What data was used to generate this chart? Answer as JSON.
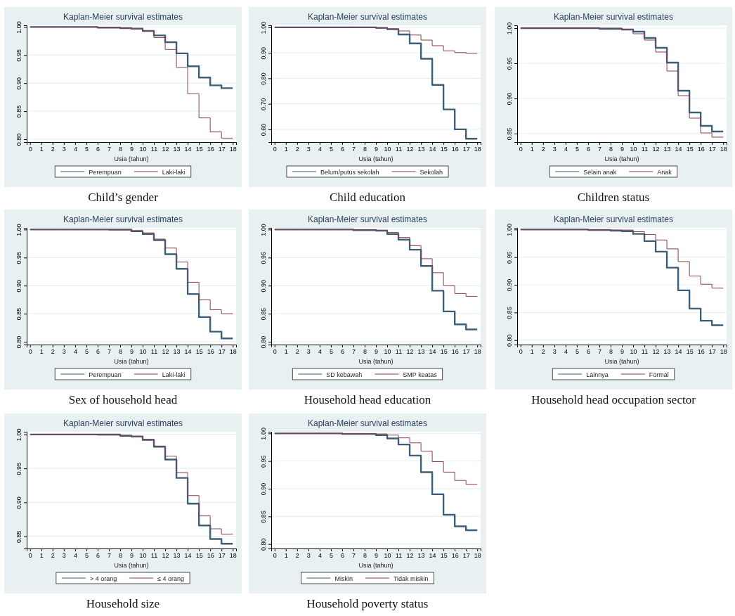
{
  "chart_data": [
    {
      "type": "step",
      "title": "Kaplan-Meier survival estimates",
      "xlabel": "Usia (tahun)",
      "annotations": [
        "Child’s gender"
      ],
      "x": [
        0,
        1,
        2,
        3,
        4,
        5,
        6,
        7,
        8,
        9,
        10,
        11,
        12,
        13,
        14,
        15,
        16,
        17,
        18
      ],
      "xlim": [
        -0.3,
        18.3
      ],
      "xticks": [
        0,
        1,
        2,
        3,
        4,
        5,
        6,
        7,
        8,
        9,
        10,
        11,
        12,
        13,
        14,
        15,
        16,
        17,
        18
      ],
      "ylim": [
        0.795,
        1.003
      ],
      "yticks": [
        {
          "value": 0.8,
          "label": "0.80"
        },
        {
          "value": 0.85,
          "label": "0.85"
        },
        {
          "value": 0.9,
          "label": "0.90"
        },
        {
          "value": 0.95,
          "label": "0.95"
        },
        {
          "value": 1,
          "label": "1.00"
        }
      ],
      "grid": "y",
      "legend": "bottom",
      "series": [
        {
          "name": "Perempuan",
          "color": "#3e5e78",
          "values": [
            1,
            1,
            1,
            1,
            1,
            1,
            0.999,
            0.999,
            0.998,
            0.997,
            0.993,
            0.985,
            0.973,
            0.953,
            0.93,
            0.91,
            0.896,
            0.891,
            0.891
          ]
        },
        {
          "name": "Laki-laki",
          "color": "#8c3d4f",
          "values": [
            1,
            1,
            1,
            1,
            1,
            1,
            0.999,
            0.999,
            0.998,
            0.996,
            0.993,
            0.981,
            0.96,
            0.928,
            0.881,
            0.838,
            0.813,
            0.802,
            0.802
          ]
        }
      ]
    },
    {
      "type": "step",
      "title": "Kaplan-Meier survival estimates",
      "xlabel": "Usia (tahun)",
      "annotations": [
        "Child education"
      ],
      "x": [
        0,
        1,
        2,
        3,
        4,
        5,
        6,
        7,
        8,
        9,
        10,
        11,
        12,
        13,
        14,
        15,
        16,
        17,
        18
      ],
      "xlim": [
        -0.3,
        18.3
      ],
      "xticks": [
        0,
        1,
        2,
        3,
        4,
        5,
        6,
        7,
        8,
        9,
        10,
        11,
        12,
        13,
        14,
        15,
        16,
        17,
        18
      ],
      "ylim": [
        0.55,
        1.008
      ],
      "yticks": [
        {
          "value": 0.6,
          "label": "0.60"
        },
        {
          "value": 0.7,
          "label": "0.70"
        },
        {
          "value": 0.8,
          "label": "0.80"
        },
        {
          "value": 0.9,
          "label": "0.90"
        },
        {
          "value": 1,
          "label": "1.00"
        }
      ],
      "grid": "y",
      "legend": "bottom",
      "series": [
        {
          "name": "Belum/putus sekolah",
          "color": "#3e5e78",
          "values": [
            1,
            1,
            1,
            1,
            1,
            1,
            1,
            1,
            1,
            0.998,
            0.993,
            0.972,
            0.937,
            0.877,
            0.774,
            0.678,
            0.6,
            0.563,
            0.563
          ]
        },
        {
          "name": "Sekolah",
          "color": "#8c3d4f",
          "values": [
            1,
            1,
            1,
            1,
            1,
            1,
            1,
            0.999,
            0.999,
            0.997,
            0.994,
            0.986,
            0.97,
            0.95,
            0.928,
            0.908,
            0.901,
            0.898,
            0.898
          ]
        }
      ]
    },
    {
      "type": "step",
      "title": "Kaplan-Meier survival estimates",
      "xlabel": "Usia (tahun)",
      "annotations": [
        "Children status"
      ],
      "x": [
        0,
        1,
        2,
        3,
        4,
        5,
        6,
        7,
        8,
        9,
        10,
        11,
        12,
        13,
        14,
        15,
        16,
        17,
        18
      ],
      "xlim": [
        -0.3,
        18.3
      ],
      "xticks": [
        0,
        1,
        2,
        3,
        4,
        5,
        6,
        7,
        8,
        9,
        10,
        11,
        12,
        13,
        14,
        15,
        16,
        17,
        18
      ],
      "ylim": [
        0.838,
        1.004
      ],
      "yticks": [
        {
          "value": 0.85,
          "label": "0.85"
        },
        {
          "value": 0.9,
          "label": "0.90"
        },
        {
          "value": 0.95,
          "label": "0.95"
        },
        {
          "value": 1,
          "label": "1.00"
        }
      ],
      "grid": "y",
      "legend": "bottom",
      "series": [
        {
          "name": "Selain anak",
          "color": "#3e5e78",
          "values": [
            1,
            1,
            1,
            1,
            1,
            1,
            1,
            0.999,
            0.999,
            0.998,
            0.995,
            0.986,
            0.972,
            0.951,
            0.911,
            0.88,
            0.861,
            0.853,
            0.853
          ]
        },
        {
          "name": "Anak",
          "color": "#8c3d4f",
          "values": [
            1,
            1,
            1,
            1,
            1,
            1,
            1,
            1,
            1,
            0.998,
            0.992,
            0.983,
            0.966,
            0.939,
            0.904,
            0.872,
            0.851,
            0.845,
            0.845
          ]
        }
      ]
    },
    {
      "type": "step",
      "title": "Kaplan-Meier survival estimates",
      "xlabel": "Usia (tahun)",
      "annotations": [
        "Sex of household head"
      ],
      "x": [
        0,
        1,
        2,
        3,
        4,
        5,
        6,
        7,
        8,
        9,
        10,
        11,
        12,
        13,
        14,
        15,
        16,
        17,
        18
      ],
      "xlim": [
        -0.3,
        18.3
      ],
      "xticks": [
        0,
        1,
        2,
        3,
        4,
        5,
        6,
        7,
        8,
        9,
        10,
        11,
        12,
        13,
        14,
        15,
        16,
        17,
        18
      ],
      "ylim": [
        0.795,
        1.003
      ],
      "yticks": [
        {
          "value": 0.8,
          "label": "0.80"
        },
        {
          "value": 0.85,
          "label": "0.85"
        },
        {
          "value": 0.9,
          "label": "0.90"
        },
        {
          "value": 0.95,
          "label": "0.95"
        },
        {
          "value": 1,
          "label": "1.00"
        }
      ],
      "grid": "y",
      "legend": "bottom",
      "series": [
        {
          "name": "Perempuan",
          "color": "#3e5e78",
          "values": [
            1,
            1,
            1,
            1,
            1,
            1,
            1,
            1,
            1,
            0.997,
            0.992,
            0.981,
            0.956,
            0.93,
            0.885,
            0.844,
            0.818,
            0.806,
            0.806
          ]
        },
        {
          "name": "Laki-laki",
          "color": "#8c3d4f",
          "values": [
            1,
            1,
            1,
            1,
            1,
            1,
            1,
            0.999,
            0.999,
            0.998,
            0.994,
            0.983,
            0.967,
            0.942,
            0.906,
            0.875,
            0.857,
            0.85,
            0.85
          ]
        }
      ]
    },
    {
      "type": "step",
      "title": "Kaplan-Meier survival estimates",
      "xlabel": "Usia (tahun)",
      "annotations": [
        "Household head education"
      ],
      "x": [
        0,
        1,
        2,
        3,
        4,
        5,
        6,
        7,
        8,
        9,
        10,
        11,
        12,
        13,
        14,
        15,
        16,
        17,
        18
      ],
      "xlim": [
        -0.3,
        18.3
      ],
      "xticks": [
        0,
        1,
        2,
        3,
        4,
        5,
        6,
        7,
        8,
        9,
        10,
        11,
        12,
        13,
        14,
        15,
        16,
        17,
        18
      ],
      "ylim": [
        0.795,
        1.003
      ],
      "yticks": [
        {
          "value": 0.8,
          "label": "0.80"
        },
        {
          "value": 0.85,
          "label": "0.85"
        },
        {
          "value": 0.9,
          "label": "0.90"
        },
        {
          "value": 0.95,
          "label": "0.95"
        },
        {
          "value": 1,
          "label": "1.00"
        }
      ],
      "grid": "y",
      "legend": "bottom",
      "series": [
        {
          "name": "SD kebawah",
          "color": "#3e5e78",
          "values": [
            1,
            1,
            1,
            1,
            1,
            1,
            1,
            0.999,
            0.999,
            0.998,
            0.992,
            0.982,
            0.964,
            0.935,
            0.891,
            0.854,
            0.831,
            0.822,
            0.822
          ]
        },
        {
          "name": "SMP keatas",
          "color": "#8c3d4f",
          "values": [
            1,
            1,
            1,
            1,
            1,
            1,
            1,
            1,
            1,
            0.998,
            0.995,
            0.986,
            0.971,
            0.948,
            0.923,
            0.9,
            0.886,
            0.881,
            0.881
          ]
        }
      ]
    },
    {
      "type": "step",
      "title": "Kaplan-Meier survival estimates",
      "xlabel": "Usia (tahun)",
      "annotations": [
        "Household head occupation sector"
      ],
      "x": [
        0,
        1,
        2,
        3,
        4,
        5,
        6,
        7,
        8,
        9,
        10,
        11,
        12,
        13,
        14,
        15,
        16,
        17,
        18
      ],
      "xlim": [
        -0.3,
        18.3
      ],
      "xticks": [
        0,
        1,
        2,
        3,
        4,
        5,
        6,
        7,
        8,
        9,
        10,
        11,
        12,
        13,
        14,
        15,
        16,
        17,
        18
      ],
      "ylim": [
        0.792,
        1.003
      ],
      "yticks": [
        {
          "value": 0.8,
          "label": "0.80"
        },
        {
          "value": 0.85,
          "label": "0.85"
        },
        {
          "value": 0.9,
          "label": "0.90"
        },
        {
          "value": 0.95,
          "label": "0.95"
        },
        {
          "value": 1,
          "label": "1.00"
        }
      ],
      "grid": "y",
      "legend": "bottom",
      "series": [
        {
          "name": "Lainnya",
          "color": "#3e5e78",
          "values": [
            1,
            1,
            1,
            1,
            1,
            1,
            0.999,
            0.999,
            0.998,
            0.997,
            0.992,
            0.979,
            0.96,
            0.931,
            0.89,
            0.857,
            0.835,
            0.827,
            0.827
          ]
        },
        {
          "name": "Formal",
          "color": "#8c3d4f",
          "values": [
            1,
            1,
            1,
            1,
            1,
            1,
            1,
            1,
            0.999,
            0.999,
            0.996,
            0.991,
            0.981,
            0.965,
            0.942,
            0.916,
            0.901,
            0.894,
            0.894
          ]
        }
      ]
    },
    {
      "type": "step",
      "title": "Kaplan-Meier survival estimates",
      "xlabel": "Usia (tahun)",
      "annotations": [
        "Household size"
      ],
      "x": [
        0,
        1,
        2,
        3,
        4,
        5,
        6,
        7,
        8,
        9,
        10,
        11,
        12,
        13,
        14,
        15,
        16,
        17,
        18
      ],
      "xlim": [
        -0.3,
        18.3
      ],
      "xticks": [
        0,
        1,
        2,
        3,
        4,
        5,
        6,
        7,
        8,
        9,
        10,
        11,
        12,
        13,
        14,
        15,
        16,
        17,
        18
      ],
      "ylim": [
        0.832,
        1.004
      ],
      "yticks": [
        {
          "value": 0.85,
          "label": "0.85"
        },
        {
          "value": 0.9,
          "label": "0.90"
        },
        {
          "value": 0.95,
          "label": "0.95"
        },
        {
          "value": 1,
          "label": "1.00"
        }
      ],
      "grid": "y",
      "legend": "bottom",
      "series": [
        {
          "name": "> 4 orang",
          "color": "#3e5e78",
          "values": [
            1,
            1,
            1,
            1,
            1,
            1,
            1,
            1,
            0.998,
            0.997,
            0.992,
            0.982,
            0.963,
            0.936,
            0.898,
            0.866,
            0.846,
            0.839,
            0.839
          ]
        },
        {
          "name": "≤ 4 orang",
          "color": "#8c3d4f",
          "values": [
            1,
            1,
            1,
            1,
            1,
            1,
            0.999,
            0.999,
            0.999,
            0.997,
            0.993,
            0.983,
            0.968,
            0.944,
            0.91,
            0.88,
            0.861,
            0.853,
            0.853
          ]
        }
      ]
    },
    {
      "type": "step",
      "title": "Kaplan-Meier survival estimates",
      "xlabel": "Usia (tahun)",
      "annotations": [
        "Household poverty status"
      ],
      "x": [
        0,
        1,
        2,
        3,
        4,
        5,
        6,
        7,
        8,
        9,
        10,
        11,
        12,
        13,
        14,
        15,
        16,
        17,
        18
      ],
      "xlim": [
        -0.3,
        18.3
      ],
      "xticks": [
        0,
        1,
        2,
        3,
        4,
        5,
        6,
        7,
        8,
        9,
        10,
        11,
        12,
        13,
        14,
        15,
        16,
        17,
        18
      ],
      "ylim": [
        0.792,
        1.003
      ],
      "yticks": [
        {
          "value": 0.8,
          "label": "0.80"
        },
        {
          "value": 0.85,
          "label": "0.85"
        },
        {
          "value": 0.9,
          "label": "0.90"
        },
        {
          "value": 0.95,
          "label": "0.95"
        },
        {
          "value": 1,
          "label": "1.00"
        }
      ],
      "grid": "y",
      "legend": "bottom",
      "series": [
        {
          "name": "Miskin",
          "color": "#3e5e78",
          "values": [
            1,
            1,
            1,
            1,
            1,
            1,
            0.999,
            0.999,
            0.999,
            0.997,
            0.991,
            0.98,
            0.96,
            0.93,
            0.89,
            0.853,
            0.832,
            0.825,
            0.825
          ]
        },
        {
          "name": "Tidak miskin",
          "color": "#8c3d4f",
          "values": [
            1,
            1,
            1,
            1,
            1,
            1,
            1,
            1,
            0.999,
            0.999,
            0.997,
            0.992,
            0.983,
            0.968,
            0.949,
            0.93,
            0.915,
            0.908,
            0.908
          ]
        }
      ]
    }
  ]
}
